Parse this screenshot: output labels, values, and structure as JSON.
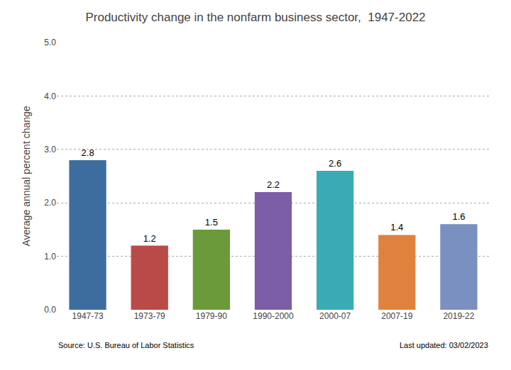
{
  "chart_data": {
    "type": "bar",
    "title": "Productivity change in the nonfarm business sector,  1947-2022",
    "categories": [
      "1947-73",
      "1973-79",
      "1979-90",
      "1990-2000",
      "2000-07",
      "2007-19",
      "2019-22"
    ],
    "values": [
      2.8,
      1.2,
      1.5,
      2.2,
      2.6,
      1.4,
      1.6
    ],
    "colors": [
      "#3d6d9e",
      "#b94a48",
      "#6a9a3a",
      "#7b5ea7",
      "#3aabb5",
      "#e0823d",
      "#7a90c0"
    ],
    "ylabel": "Average annual percent change",
    "ylim": [
      0,
      5.0
    ],
    "yticks": [
      {
        "value": 0.0,
        "label": "0.0"
      },
      {
        "value": 1.0,
        "label": "1.0"
      },
      {
        "value": 2.0,
        "label": "2.0"
      },
      {
        "value": 3.0,
        "label": "3.0"
      },
      {
        "value": 4.0,
        "label": "4.0"
      },
      {
        "value": 5.0,
        "label": "5.0"
      }
    ],
    "annotations": [
      "Source: U.S. Bureau of Labor Statistics",
      "Last updated: 03/02/2023"
    ],
    "grid": true,
    "data_labels": true
  }
}
